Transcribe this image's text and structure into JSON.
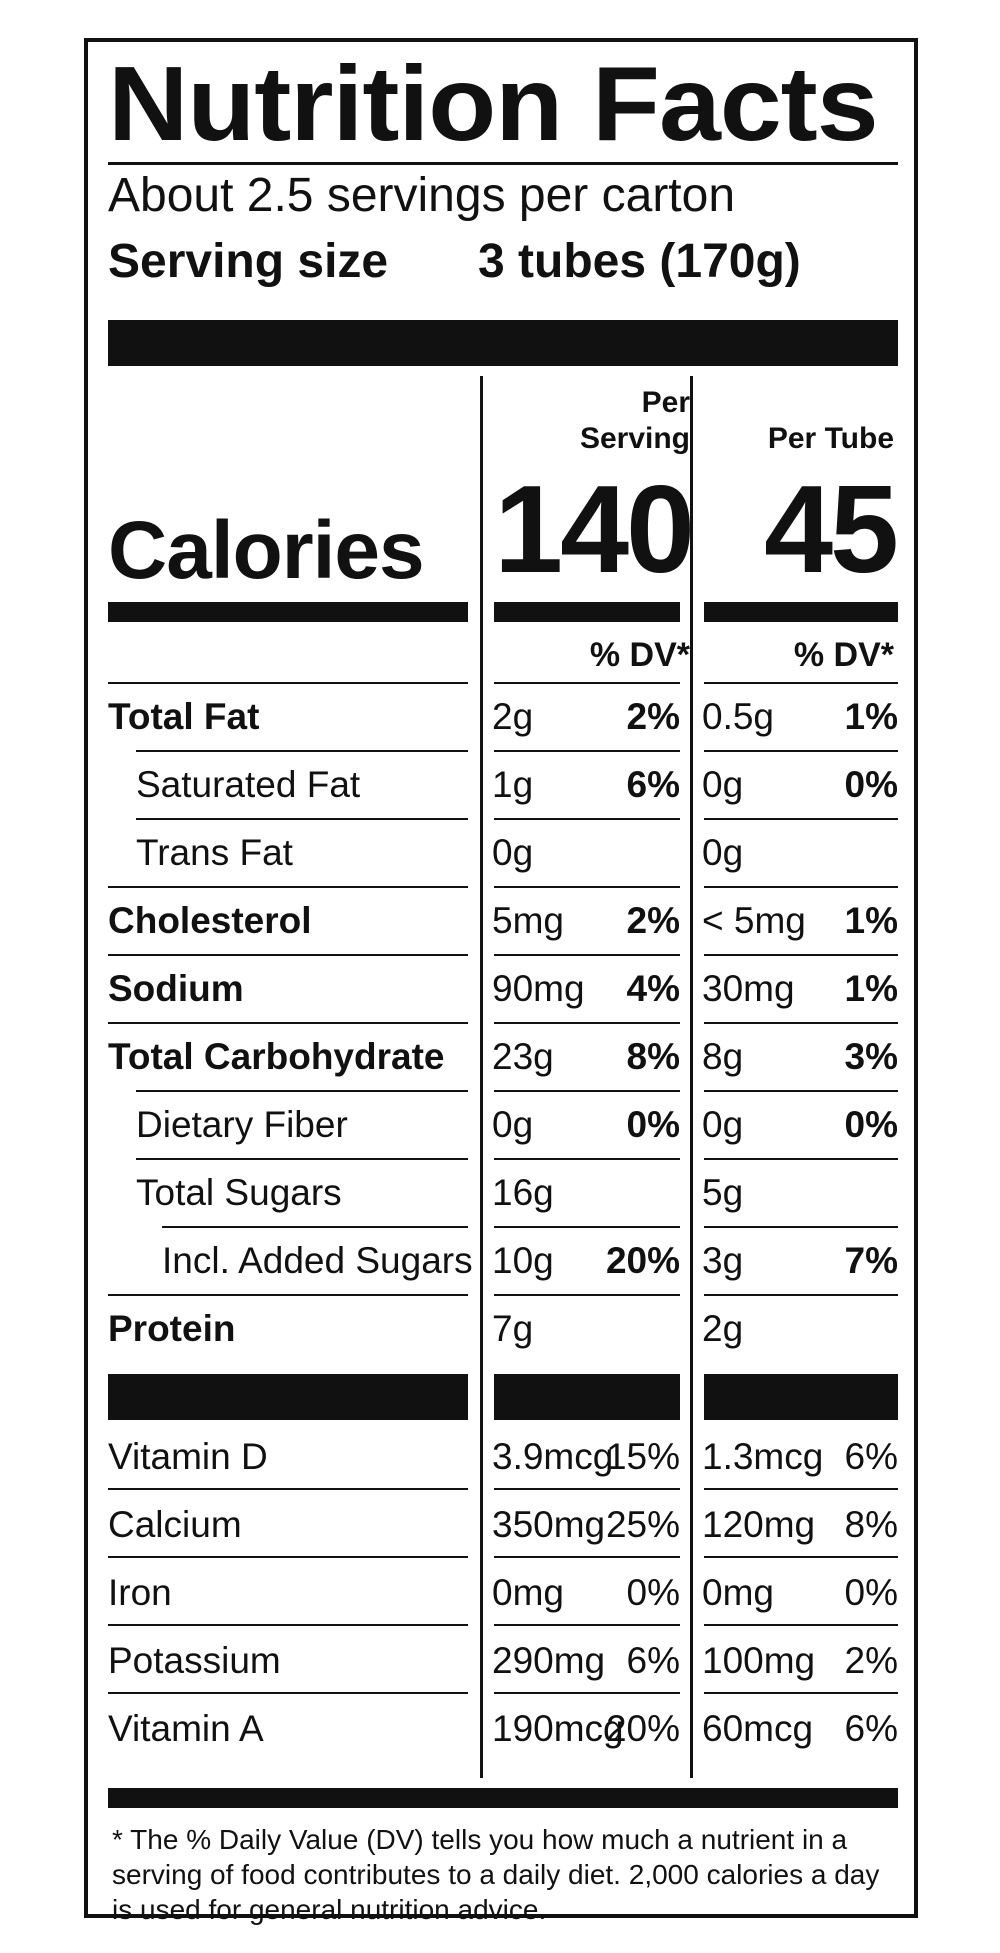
{
  "title": "Nutrition Facts",
  "servings_per_container": "About 2.5 servings per carton",
  "serving_size_label": "Serving size",
  "serving_size_value": "3 tubes (170g)",
  "columns": {
    "per_serving_line1": "Per",
    "per_serving_line2": "Serving",
    "per_tube": "Per Tube"
  },
  "calories": {
    "label": "Calories",
    "per_serving": "140",
    "per_tube": "45"
  },
  "dv_header": "% DV*",
  "nutrients": [
    {
      "name": "Total Fat",
      "indent": 0,
      "bold": true,
      "serv_amt": "2g",
      "serv_dv": "2%",
      "tube_amt": "0.5g",
      "tube_dv": "1%"
    },
    {
      "name": "Saturated Fat",
      "indent": 1,
      "bold": false,
      "serv_amt": "1g",
      "serv_dv": "6%",
      "tube_amt": "0g",
      "tube_dv": "0%"
    },
    {
      "name": "Trans Fat",
      "indent": 1,
      "bold": false,
      "serv_amt": "0g",
      "serv_dv": "",
      "tube_amt": "0g",
      "tube_dv": ""
    },
    {
      "name": "Cholesterol",
      "indent": 0,
      "bold": true,
      "serv_amt": "5mg",
      "serv_dv": "2%",
      "tube_amt": "< 5mg",
      "tube_dv": "1%"
    },
    {
      "name": "Sodium",
      "indent": 0,
      "bold": true,
      "serv_amt": "90mg",
      "serv_dv": "4%",
      "tube_amt": "30mg",
      "tube_dv": "1%"
    },
    {
      "name": "Total Carbohydrate",
      "indent": 0,
      "bold": true,
      "serv_amt": "23g",
      "serv_dv": "8%",
      "tube_amt": "8g",
      "tube_dv": "3%"
    },
    {
      "name": "Dietary Fiber",
      "indent": 1,
      "bold": false,
      "serv_amt": "0g",
      "serv_dv": "0%",
      "tube_amt": "0g",
      "tube_dv": "0%"
    },
    {
      "name": "Total Sugars",
      "indent": 1,
      "bold": false,
      "serv_amt": "16g",
      "serv_dv": "",
      "tube_amt": "5g",
      "tube_dv": ""
    },
    {
      "name": "Incl. Added Sugars",
      "indent": 2,
      "bold": false,
      "serv_amt": "10g",
      "serv_dv": "20%",
      "tube_amt": "3g",
      "tube_dv": "7%"
    },
    {
      "name": "Protein",
      "indent": 0,
      "bold": true,
      "serv_amt": "7g",
      "serv_dv": "",
      "tube_amt": "2g",
      "tube_dv": ""
    }
  ],
  "vitamins": [
    {
      "name": "Vitamin D",
      "serv_amt": "3.9mcg",
      "serv_dv": "15%",
      "tube_amt": "1.3mcg",
      "tube_dv": "6%"
    },
    {
      "name": "Calcium",
      "serv_amt": "350mg",
      "serv_dv": "25%",
      "tube_amt": "120mg",
      "tube_dv": "8%"
    },
    {
      "name": "Iron",
      "serv_amt": "0mg",
      "serv_dv": "0%",
      "tube_amt": "0mg",
      "tube_dv": "0%"
    },
    {
      "name": "Potassium",
      "serv_amt": "290mg",
      "serv_dv": "6%",
      "tube_amt": "100mg",
      "tube_dv": "2%"
    },
    {
      "name": "Vitamin A",
      "serv_amt": "190mcg",
      "serv_dv": "20%",
      "tube_amt": "60mcg",
      "tube_dv": "6%"
    }
  ],
  "footnote": "* The % Daily Value (DV) tells you how much a nutrient in a serving of food contributes to a daily diet. 2,000 calories a day is used for general nutrition advice."
}
